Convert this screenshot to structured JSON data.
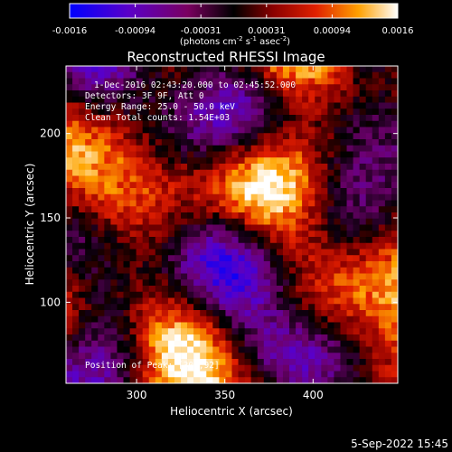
{
  "chart_data": {
    "type": "heatmap",
    "title": "Reconstructed RHESSI Image",
    "xlabel": "Heliocentric X (arcsec)",
    "ylabel": "Heliocentric Y (arcsec)",
    "xlim": [
      260,
      448
    ],
    "ylim": [
      52,
      240
    ],
    "x_ticks": [
      300,
      350,
      400
    ],
    "y_ticks": [
      100,
      150,
      200
    ],
    "colorbar": {
      "range": [
        -0.0016,
        0.0016
      ],
      "ticks": [
        "-0.0016",
        "-0.00094",
        "-0.00031",
        "0.00031",
        "0.00094",
        "0.0016"
      ],
      "unit_label": "(photons cm",
      "unit_label_parts": [
        "(photons cm",
        "-2",
        " s",
        "-1",
        " asec",
        "-2",
        ")"
      ]
    },
    "annotations": [
      "1-Dec-2016 02:43:20.000 to 02:45:52.000",
      "Detectors: 3F 9F, Att 0",
      "Energy Range: 25.0 - 50.0 keV",
      "Clean    Total counts: 1.54E+03"
    ],
    "peak_label": "Position of Peak: [306,92]",
    "peak_position": [
      306,
      92
    ],
    "grid": false
  },
  "footer": {
    "date": "5-Sep-2022 15:45"
  }
}
